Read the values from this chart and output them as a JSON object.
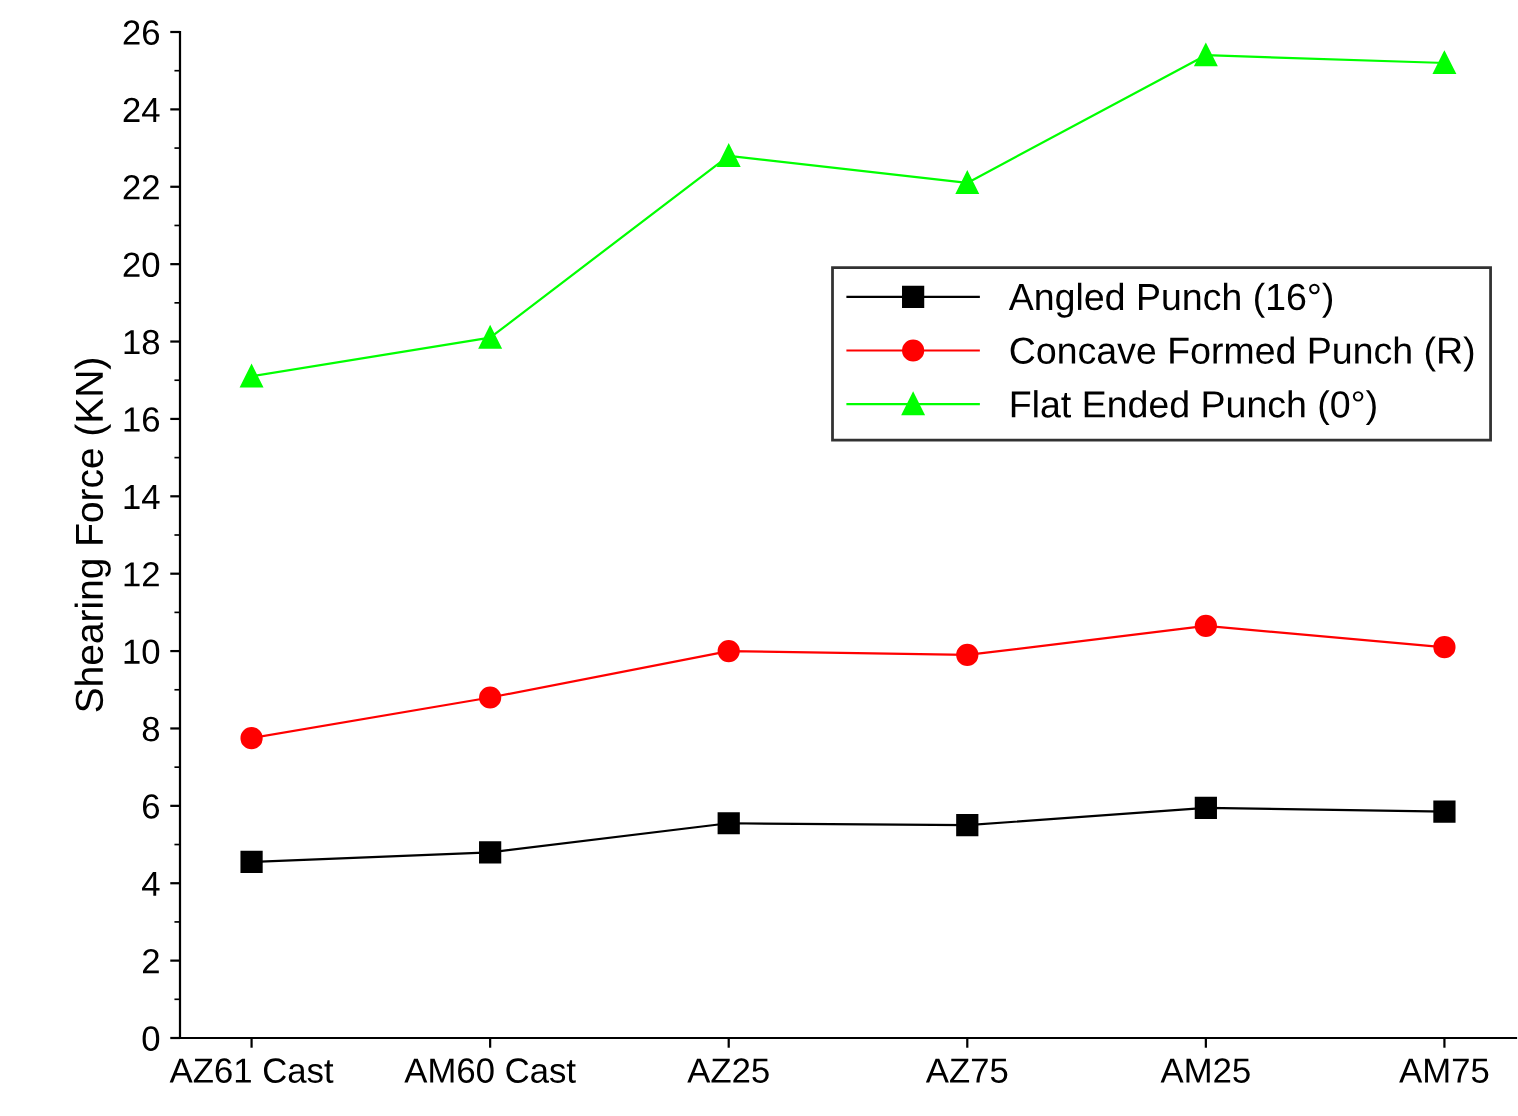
{
  "chart_data": {
    "type": "line",
    "ylabel": "Shearing Force (KN)",
    "categories": [
      "AZ61 Cast",
      "AM60 Cast",
      "AZ25",
      "AZ75",
      "AM25",
      "AM75"
    ],
    "series": [
      {
        "name": "Angled Punch (16°)",
        "color": "#000000",
        "marker": "square",
        "values": [
          4.55,
          4.8,
          5.55,
          5.5,
          5.95,
          5.85
        ]
      },
      {
        "name": "Concave Formed Punch (R)",
        "color": "#ff0000",
        "marker": "circle",
        "values": [
          7.75,
          8.8,
          10.0,
          9.9,
          10.65,
          10.1
        ]
      },
      {
        "name": "Flat Ended Punch (0°)",
        "color": "#00ff00",
        "marker": "triangle",
        "values": [
          17.1,
          18.1,
          22.8,
          22.1,
          25.4,
          25.2
        ]
      }
    ],
    "ylim": [
      0,
      26
    ],
    "yticks": [
      0,
      2,
      4,
      6,
      8,
      10,
      12,
      14,
      16,
      18,
      20,
      22,
      24,
      26
    ],
    "grid": false,
    "legend": "right",
    "line_style": "solid"
  }
}
